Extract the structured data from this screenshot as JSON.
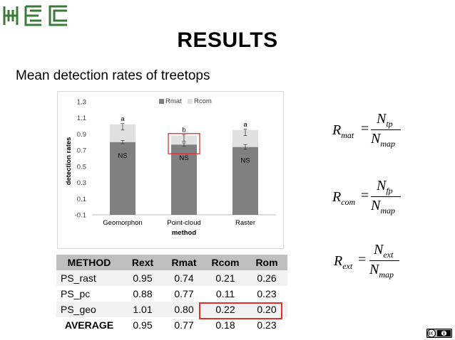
{
  "title": "RESULTS",
  "subtitle": "Mean detection rates of treetops",
  "colors": {
    "rmat": "#808080",
    "rcom": "#e0e0e0",
    "highlight": "#e0302b",
    "logo": "#3a7b3a"
  },
  "chart_data": {
    "type": "bar",
    "stacked": true,
    "categories": [
      "Geomorphon",
      "Point-cloud",
      "Raster"
    ],
    "series": [
      {
        "name": "Rmat",
        "values": [
          0.8,
          0.77,
          0.74
        ]
      },
      {
        "name": "Rcom",
        "values": [
          0.22,
          0.11,
          0.21
        ]
      }
    ],
    "error_bars": {
      "Rmat": [
        0.02,
        0.02,
        0.03
      ],
      "Rcom": [
        0.04,
        0.04,
        0.04
      ]
    },
    "rmat_labels": [
      "NS",
      "NS",
      "NS"
    ],
    "rcom_labels": [
      "a",
      "b",
      "a"
    ],
    "xlabel": "method",
    "ylabel": "detection rates",
    "y_ticks": [
      "-0.1",
      "0.1",
      "0.3",
      "0.5",
      "0.7",
      "0.9",
      "1.1",
      "1.3"
    ],
    "ylim": [
      -0.1,
      1.3
    ],
    "grid": false,
    "legend_position": "top",
    "highlight_category": "Point-cloud"
  },
  "table": {
    "headers": [
      "METHOD",
      "Rext",
      "Rmat",
      "Rcom",
      "Rom"
    ],
    "rows": [
      [
        "PS_rast",
        "0.95",
        "0.74",
        "0.21",
        "0.26"
      ],
      [
        "PS_pc",
        "0.88",
        "0.77",
        "0.11",
        "0.23"
      ],
      [
        "PS_geo",
        "1.01",
        "0.80",
        "0.22",
        "0.20"
      ],
      [
        "AVERAGE",
        "0.95",
        "0.77",
        "0.18",
        "0.23"
      ]
    ]
  },
  "formulas": {
    "rmat": {
      "lhs": "R",
      "lhs_sub": "mat",
      "eq": "=",
      "num": "N",
      "num_sub": "tp",
      "den": "N",
      "den_sub": "map"
    },
    "rcom": {
      "lhs": "R",
      "lhs_sub": "com",
      "eq": "=",
      "num": "N",
      "num_sub": "fp",
      "den": "N",
      "den_sub": "map"
    },
    "rext": {
      "lhs": "R",
      "lhs_sub": "ext",
      "eq": "=",
      "num": "N",
      "num_sub": "ext",
      "den": "N",
      "den_sub": "map"
    }
  },
  "license_badge": "cc-by-icon"
}
